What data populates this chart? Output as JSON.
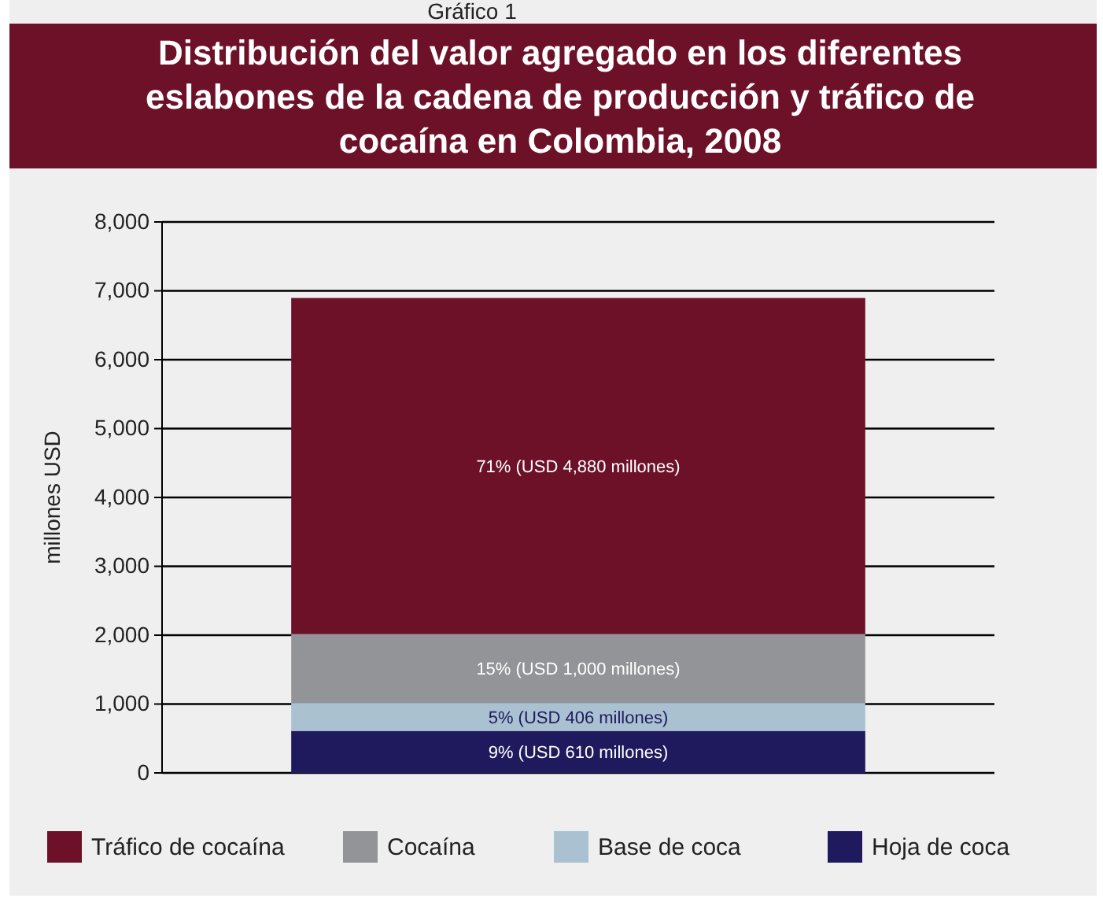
{
  "chart_data": {
    "type": "bar",
    "title": "Distribución del valor agregado en los diferentes eslabones de la cadena de producción y tráfico de cocaína en Colombia, 2008",
    "ylabel": "millones USD",
    "annotations": [
      "Gráfico 1"
    ],
    "categories": [
      null
    ],
    "stacked": true,
    "ylim": [
      0,
      8000
    ],
    "yticks": [
      {
        "value": 0,
        "label": "0"
      },
      {
        "value": 1000,
        "label": "1,000"
      },
      {
        "value": 2000,
        "label": "2,000"
      },
      {
        "value": 3000,
        "label": "3,000"
      },
      {
        "value": 4000,
        "label": "4,000"
      },
      {
        "value": 5000,
        "label": "5,000"
      },
      {
        "value": 6000,
        "label": "6,000"
      },
      {
        "value": 7000,
        "label": "7,000"
      },
      {
        "value": 8000,
        "label": "8,000"
      }
    ],
    "grid": "y",
    "legend": "bottom",
    "series": [
      {
        "name": "Hoja de coca",
        "color": "#1f1a5e",
        "values": [
          610
        ],
        "value_labels": [
          "9% (USD 610 millones)"
        ]
      },
      {
        "name": "Base de coca",
        "color": "#a9c1d0",
        "values": [
          406
        ],
        "value_labels": [
          "5% (USD 406 millones)"
        ]
      },
      {
        "name": "Cocaína",
        "color": "#929497",
        "values": [
          1000
        ],
        "value_labels": [
          "15% (USD 1,000 millones)"
        ]
      },
      {
        "name": "Tráfico de cocaína",
        "color": "#6d1128",
        "values": [
          4880
        ],
        "value_labels": [
          "71% (USD 4,880 millones)"
        ]
      }
    ]
  }
}
